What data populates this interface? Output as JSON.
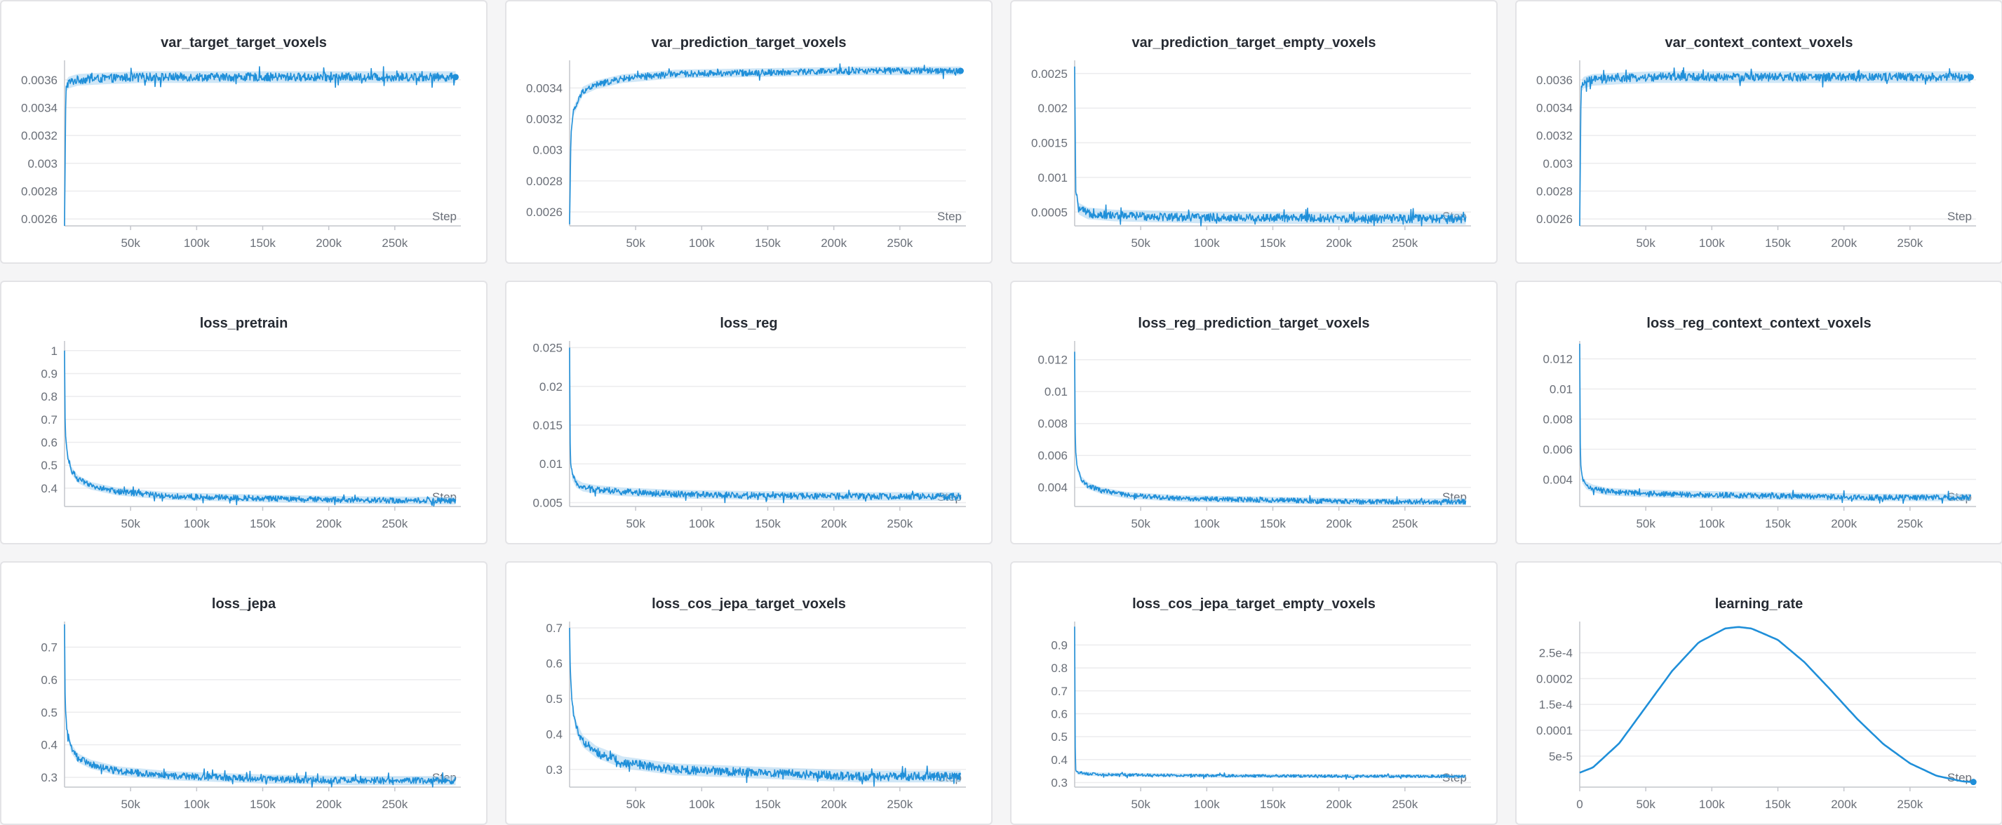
{
  "colors": {
    "series": "#1f8fd9",
    "band": "#a9d3f1",
    "grid": "#ececee",
    "axis": "#c4c6cc"
  },
  "chart_data": [
    {
      "title": "var_target_target_voxels",
      "type": "line",
      "xlabel": "Step",
      "xticks": [
        "50k",
        "100k",
        "150k",
        "200k",
        "250k"
      ],
      "xtick_values": [
        50000,
        100000,
        150000,
        200000,
        250000
      ],
      "ylim": [
        0.00255,
        0.00372
      ],
      "yticks": [
        "0.0026",
        "0.0028",
        "0.003",
        "0.0032",
        "0.0034",
        "0.0036"
      ],
      "ytick_values": [
        0.0026,
        0.0028,
        0.003,
        0.0032,
        0.0034,
        0.0036
      ],
      "x": [
        0,
        1000,
        3000,
        10000,
        30000,
        60000,
        100000,
        150000,
        200000,
        250000,
        296000
      ],
      "y": [
        0.00255,
        0.00355,
        0.00358,
        0.0036,
        0.00361,
        0.00362,
        0.00362,
        0.00362,
        0.00362,
        0.00362,
        0.00362
      ],
      "noise": 3e-05,
      "end_marker": true
    },
    {
      "title": "var_prediction_target_voxels",
      "type": "line",
      "xlabel": "Step",
      "xticks": [
        "50k",
        "100k",
        "150k",
        "200k",
        "250k"
      ],
      "xtick_values": [
        50000,
        100000,
        150000,
        200000,
        250000
      ],
      "ylim": [
        0.00251,
        0.00356
      ],
      "yticks": [
        "0.0026",
        "0.0028",
        "0.003",
        "0.0032",
        "0.0034"
      ],
      "ytick_values": [
        0.0026,
        0.0028,
        0.003,
        0.0032,
        0.0034
      ],
      "x": [
        0,
        1000,
        3000,
        10000,
        20000,
        40000,
        80000,
        150000,
        220000,
        296000
      ],
      "y": [
        0.00252,
        0.0031,
        0.00325,
        0.00338,
        0.00342,
        0.00346,
        0.00349,
        0.0035,
        0.00351,
        0.00351
      ],
      "noise": 2e-05,
      "end_marker": true
    },
    {
      "title": "var_prediction_target_empty_voxels",
      "type": "line",
      "xlabel": "Step",
      "xticks": [
        "50k",
        "100k",
        "150k",
        "200k",
        "250k"
      ],
      "xtick_values": [
        50000,
        100000,
        150000,
        200000,
        250000
      ],
      "ylim": [
        0.0003,
        0.00265
      ],
      "yticks": [
        "0.0005",
        "0.001",
        "0.0015",
        "0.002",
        "0.0025"
      ],
      "ytick_values": [
        0.0005,
        0.001,
        0.0015,
        0.002,
        0.0025
      ],
      "x": [
        0,
        800,
        3000,
        10000,
        30000,
        100000,
        200000,
        296000
      ],
      "y": [
        0.0026,
        0.0008,
        0.00055,
        0.00048,
        0.00045,
        0.00042,
        0.00041,
        0.0004
      ],
      "noise": 6e-05,
      "end_marker": false
    },
    {
      "title": "var_context_context_voxels",
      "type": "line",
      "xlabel": "Step",
      "xticks": [
        "50k",
        "100k",
        "150k",
        "200k",
        "250k"
      ],
      "xtick_values": [
        50000,
        100000,
        150000,
        200000,
        250000
      ],
      "ylim": [
        0.00255,
        0.00372
      ],
      "yticks": [
        "0.0026",
        "0.0028",
        "0.003",
        "0.0032",
        "0.0034",
        "0.0036"
      ],
      "ytick_values": [
        0.0026,
        0.0028,
        0.003,
        0.0032,
        0.0034,
        0.0036
      ],
      "x": [
        0,
        1000,
        3000,
        10000,
        30000,
        60000,
        100000,
        150000,
        200000,
        250000,
        296000
      ],
      "y": [
        0.00255,
        0.00355,
        0.00358,
        0.0036,
        0.00361,
        0.00362,
        0.00362,
        0.00362,
        0.00362,
        0.00362,
        0.00362
      ],
      "noise": 3e-05,
      "end_marker": true
    },
    {
      "title": "loss_pretrain",
      "type": "line",
      "xlabel": "Step",
      "xticks": [
        "50k",
        "100k",
        "150k",
        "200k",
        "250k"
      ],
      "xtick_values": [
        50000,
        100000,
        150000,
        200000,
        250000
      ],
      "ylim": [
        0.32,
        1.03
      ],
      "yticks": [
        "0.4",
        "0.5",
        "0.6",
        "0.7",
        "0.8",
        "0.9",
        "1"
      ],
      "ytick_values": [
        0.4,
        0.5,
        0.6,
        0.7,
        0.8,
        0.9,
        1
      ],
      "x": [
        0,
        500,
        2000,
        5000,
        10000,
        20000,
        40000,
        80000,
        150000,
        220000,
        296000
      ],
      "y": [
        1.0,
        0.65,
        0.55,
        0.48,
        0.44,
        0.41,
        0.385,
        0.365,
        0.355,
        0.348,
        0.345
      ],
      "noise": 0.012,
      "end_marker": false
    },
    {
      "title": "loss_reg",
      "type": "line",
      "xlabel": "Step",
      "xticks": [
        "50k",
        "100k",
        "150k",
        "200k",
        "250k"
      ],
      "xtick_values": [
        50000,
        100000,
        150000,
        200000,
        250000
      ],
      "ylim": [
        0.0045,
        0.0255
      ],
      "yticks": [
        "0.005",
        "0.01",
        "0.015",
        "0.02",
        "0.025"
      ],
      "ytick_values": [
        0.005,
        0.01,
        0.015,
        0.02,
        0.025
      ],
      "x": [
        0,
        500,
        2000,
        5000,
        10000,
        20000,
        40000,
        80000,
        150000,
        220000,
        296000
      ],
      "y": [
        0.025,
        0.0105,
        0.0085,
        0.0075,
        0.007,
        0.0067,
        0.0064,
        0.0061,
        0.0059,
        0.0058,
        0.0058
      ],
      "noise": 0.0004,
      "end_marker": false
    },
    {
      "title": "loss_reg_prediction_target_voxels",
      "type": "line",
      "xlabel": "Step",
      "xticks": [
        "50k",
        "100k",
        "150k",
        "200k",
        "250k"
      ],
      "xtick_values": [
        50000,
        100000,
        150000,
        200000,
        250000
      ],
      "ylim": [
        0.0028,
        0.013
      ],
      "yticks": [
        "0.004",
        "0.006",
        "0.008",
        "0.01",
        "0.012"
      ],
      "ytick_values": [
        0.004,
        0.006,
        0.008,
        0.01,
        0.012
      ],
      "x": [
        0,
        500,
        2000,
        5000,
        10000,
        20000,
        40000,
        80000,
        150000,
        220000,
        296000
      ],
      "y": [
        0.0125,
        0.0065,
        0.0052,
        0.0045,
        0.0041,
        0.0038,
        0.0035,
        0.0033,
        0.0032,
        0.0031,
        0.0031
      ],
      "noise": 0.00015,
      "end_marker": false
    },
    {
      "title": "loss_reg_context_context_voxels",
      "type": "line",
      "xlabel": "Step",
      "xticks": [
        "50k",
        "100k",
        "150k",
        "200k",
        "250k"
      ],
      "xtick_values": [
        50000,
        100000,
        150000,
        200000,
        250000
      ],
      "ylim": [
        0.0022,
        0.013
      ],
      "yticks": [
        "0.004",
        "0.006",
        "0.008",
        "0.01",
        "0.012"
      ],
      "ytick_values": [
        0.004,
        0.006,
        0.008,
        0.01,
        0.012
      ],
      "x": [
        0,
        500,
        2000,
        5000,
        10000,
        20000,
        40000,
        80000,
        150000,
        220000,
        296000
      ],
      "y": [
        0.013,
        0.0052,
        0.004,
        0.0036,
        0.0034,
        0.0032,
        0.0031,
        0.003,
        0.0029,
        0.0028,
        0.0028
      ],
      "noise": 0.00018,
      "end_marker": false
    },
    {
      "title": "loss_jepa",
      "type": "line",
      "xlabel": "Step",
      "xticks": [
        "50k",
        "100k",
        "150k",
        "200k",
        "250k"
      ],
      "xtick_values": [
        50000,
        100000,
        150000,
        200000,
        250000
      ],
      "ylim": [
        0.27,
        0.77
      ],
      "yticks": [
        "0.3",
        "0.4",
        "0.5",
        "0.6",
        "0.7"
      ],
      "ytick_values": [
        0.3,
        0.4,
        0.5,
        0.6,
        0.7
      ],
      "x": [
        0,
        500,
        2000,
        5000,
        10000,
        20000,
        40000,
        80000,
        150000,
        220000,
        296000
      ],
      "y": [
        0.77,
        0.52,
        0.44,
        0.39,
        0.36,
        0.34,
        0.32,
        0.305,
        0.295,
        0.29,
        0.29
      ],
      "noise": 0.01,
      "end_marker": false
    },
    {
      "title": "loss_cos_jepa_target_voxels",
      "type": "line",
      "xlabel": "Step",
      "xticks": [
        "50k",
        "100k",
        "150k",
        "200k",
        "250k"
      ],
      "xtick_values": [
        50000,
        100000,
        150000,
        200000,
        250000
      ],
      "ylim": [
        0.25,
        0.71
      ],
      "yticks": [
        "0.3",
        "0.4",
        "0.5",
        "0.6",
        "0.7"
      ],
      "ytick_values": [
        0.3,
        0.4,
        0.5,
        0.6,
        0.7
      ],
      "x": [
        0,
        500,
        2000,
        5000,
        10000,
        20000,
        40000,
        80000,
        150000,
        220000,
        296000
      ],
      "y": [
        0.7,
        0.58,
        0.48,
        0.42,
        0.38,
        0.35,
        0.32,
        0.3,
        0.29,
        0.28,
        0.28
      ],
      "noise": 0.012,
      "end_marker": false
    },
    {
      "title": "loss_cos_jepa_target_empty_voxels",
      "type": "line",
      "xlabel": "Step",
      "xticks": [
        "50k",
        "100k",
        "150k",
        "200k",
        "250k"
      ],
      "xtick_values": [
        50000,
        100000,
        150000,
        200000,
        250000
      ],
      "ylim": [
        0.28,
        0.99
      ],
      "yticks": [
        "0.3",
        "0.4",
        "0.5",
        "0.6",
        "0.7",
        "0.8",
        "0.9"
      ],
      "ytick_values": [
        0.3,
        0.4,
        0.5,
        0.6,
        0.7,
        0.8,
        0.9
      ],
      "x": [
        0,
        500,
        1500,
        5000,
        20000,
        100000,
        200000,
        296000
      ],
      "y": [
        0.98,
        0.36,
        0.345,
        0.34,
        0.335,
        0.33,
        0.328,
        0.327
      ],
      "noise": 0.006,
      "end_marker": false
    },
    {
      "title": "learning_rate",
      "type": "line",
      "xlabel": "Step",
      "xticks": [
        "0",
        "50k",
        "100k",
        "150k",
        "200k",
        "250k"
      ],
      "xtick_values": [
        0,
        50000,
        100000,
        150000,
        200000,
        250000
      ],
      "ylim": [
        -1e-05,
        0.000305
      ],
      "yticks": [
        "5e-5",
        "0.0001",
        "1.5e-4",
        "0.0002",
        "2.5e-4"
      ],
      "ytick_values": [
        5e-05,
        0.0001,
        0.00015,
        0.0002,
        0.00025
      ],
      "x": [
        0,
        10000,
        30000,
        50000,
        70000,
        90000,
        110000,
        120000,
        130000,
        150000,
        170000,
        190000,
        210000,
        230000,
        250000,
        270000,
        290000,
        298000
      ],
      "y": [
        1.8e-05,
        2.8e-05,
        7.5e-05,
        0.000145,
        0.000215,
        0.00027,
        0.000297,
        0.0003,
        0.000297,
        0.000275,
        0.000232,
        0.000178,
        0.000122,
        7.3e-05,
        3.6e-05,
        1.2e-05,
        1e-06,
        0.0
      ],
      "noise": 0,
      "end_marker": true
    }
  ]
}
